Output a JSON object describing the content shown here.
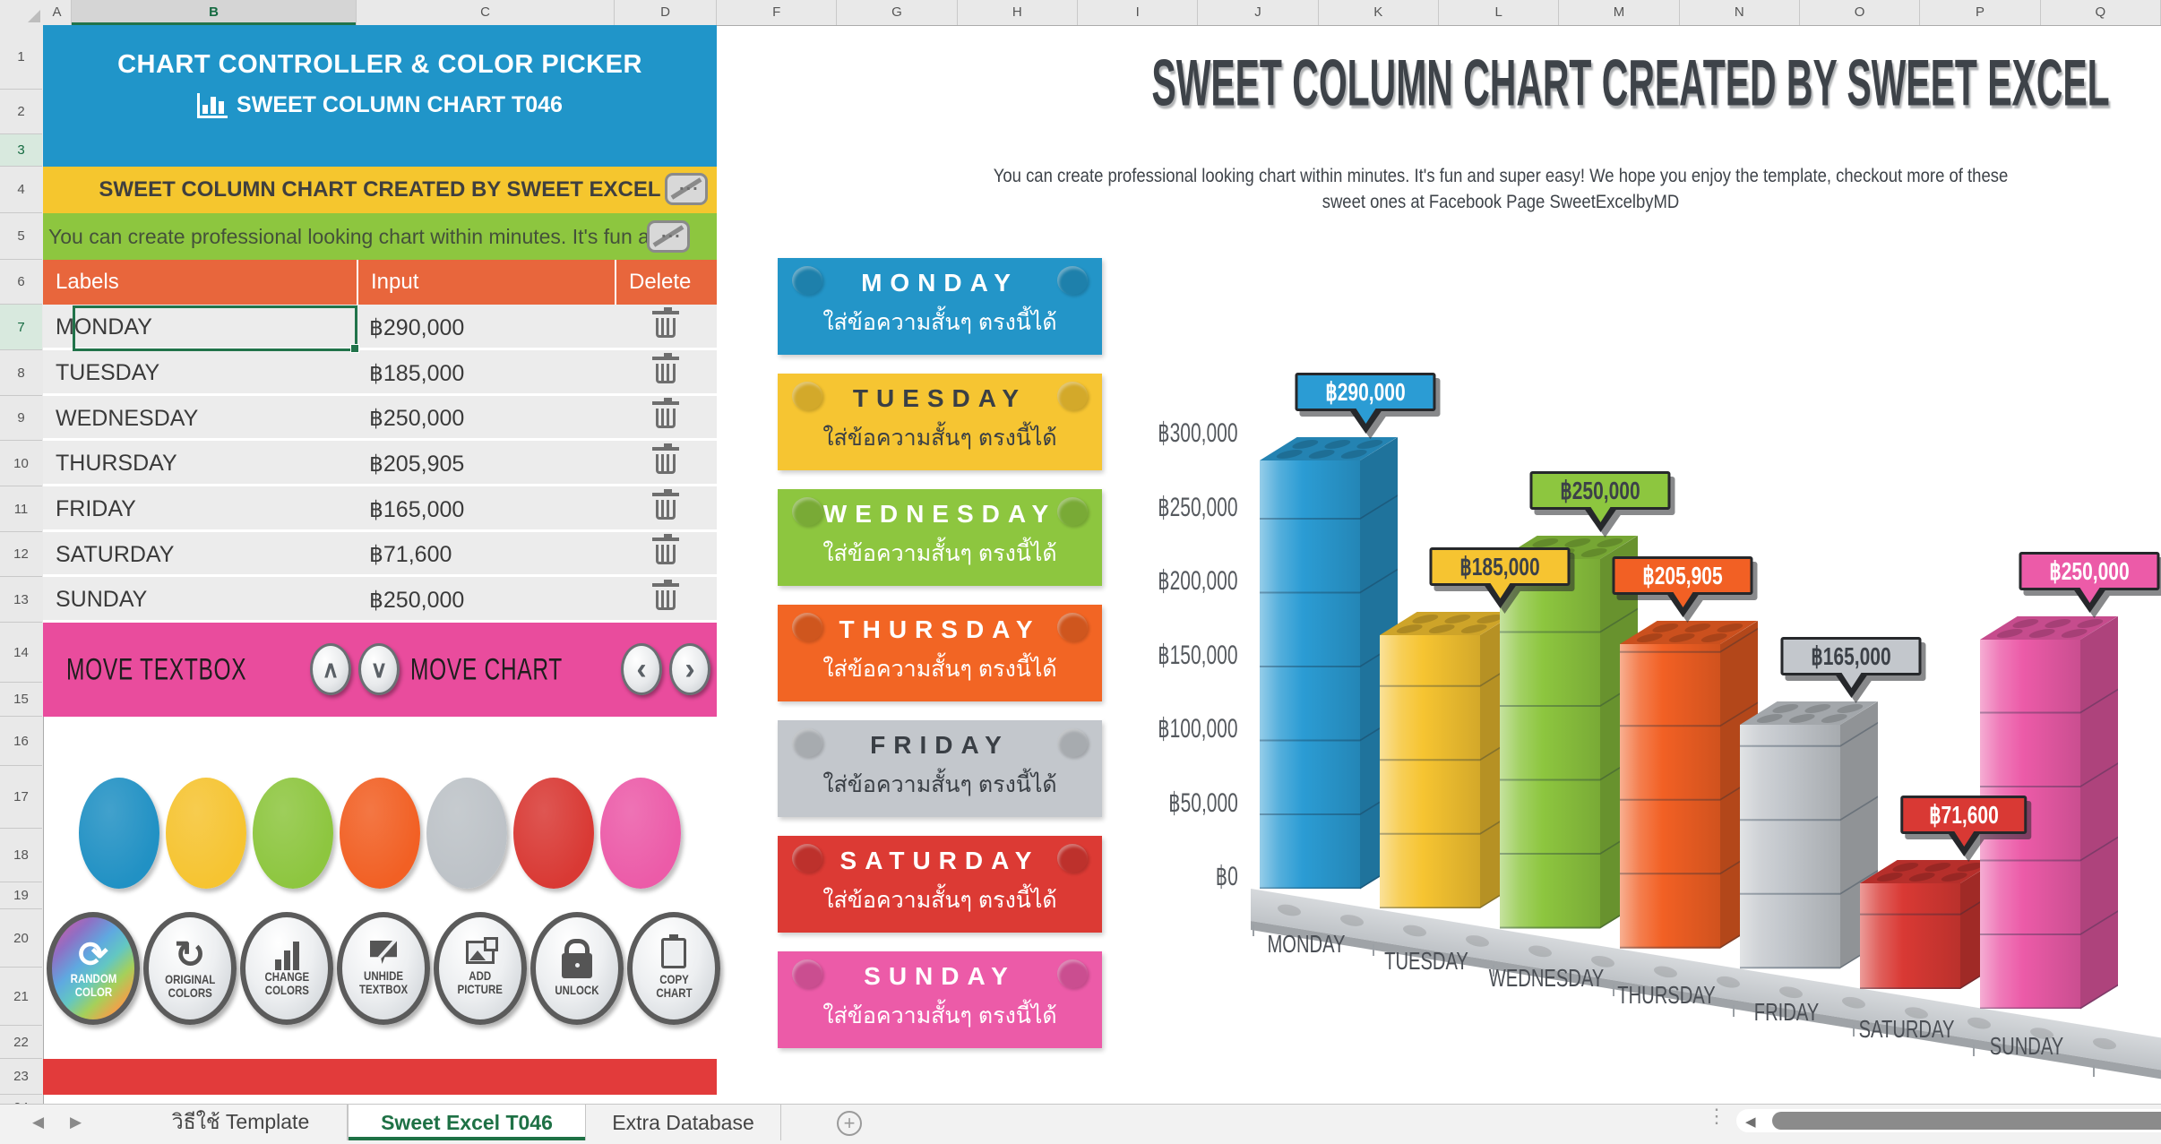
{
  "spreadsheet": {
    "column_headers": [
      "A",
      "B",
      "C",
      "D",
      "F",
      "G",
      "H",
      "I",
      "J",
      "K",
      "L",
      "M",
      "N",
      "O",
      "P",
      "Q"
    ],
    "selected_column": "B",
    "row_count": 24,
    "highlighted_rows": [
      3,
      7
    ],
    "sheet_tabs": [
      {
        "label": "วิธีใช้ Template",
        "active": false
      },
      {
        "label": "Sweet Excel T046",
        "active": true
      },
      {
        "label": "Extra Database",
        "active": false
      }
    ],
    "nav": {
      "prev_icon": "◀",
      "next_icon": "▶",
      "new_sheet_icon": "+",
      "scroll_left_icon": "◀",
      "dots_icon": "⋮"
    }
  },
  "controller": {
    "header": {
      "line1": "CHART CONTROLLER & COLOR PICKER",
      "line2": "SWEET COLUMN CHART T046"
    },
    "banner": "SWEET COLUMN CHART CREATED BY SWEET EXCEL",
    "description": "You can create professional looking chart within minutes. It's fun a",
    "table": {
      "headers": [
        "Labels",
        "Input",
        "Delete"
      ],
      "rows": [
        {
          "label": "MONDAY",
          "input": "฿290,000"
        },
        {
          "label": "TUESDAY",
          "input": "฿185,000"
        },
        {
          "label": "WEDNESDAY",
          "input": "฿250,000"
        },
        {
          "label": "THURSDAY",
          "input": "฿205,905"
        },
        {
          "label": "FRIDAY",
          "input": "฿165,000"
        },
        {
          "label": "SATURDAY",
          "input": "฿71,600"
        },
        {
          "label": "SUNDAY",
          "input": "฿250,000"
        }
      ]
    },
    "move_bar": {
      "textbox_label": "MOVE TEXTBOX",
      "chart_label": "MOVE CHART",
      "up": "∧",
      "down": "∨",
      "left": "‹",
      "right": "›"
    },
    "palette": [
      "#2191C4",
      "#F6C431",
      "#8DC63F",
      "#F26024",
      "#BDC2C7",
      "#D93934",
      "#EC5BA8"
    ],
    "buttons": [
      {
        "label": "RANDOM COLOR",
        "icon": "random-color"
      },
      {
        "label": "ORIGINAL COLORS",
        "icon": "original-colors"
      },
      {
        "label": "CHANGE COLORS",
        "icon": "change-colors"
      },
      {
        "label": "UNHIDE TEXTBOX",
        "icon": "unhide-textbox"
      },
      {
        "label": "ADD PICTURE",
        "icon": "add-picture"
      },
      {
        "label": "UNLOCK",
        "icon": "unlock"
      },
      {
        "label": "COPY CHART",
        "icon": "copy-chart"
      }
    ]
  },
  "textbox_cards": [
    {
      "title": "MONDAY",
      "subtitle": "ใส่ข้อความสั้นๆ ตรงนี้ได้",
      "color": "#2395C8",
      "text_color": "#FFFFFF"
    },
    {
      "title": "TUESDAY",
      "subtitle": "ใส่ข้อความสั้นๆ ตรงนี้ได้",
      "color": "#F6C532",
      "text_color": "#3A3F45"
    },
    {
      "title": "WEDNESDAY",
      "subtitle": "ใส่ข้อความสั้นๆ ตรงนี้ได้",
      "color": "#8DC63F",
      "text_color": "#FFFFFF"
    },
    {
      "title": "THURSDAY",
      "subtitle": "ใส่ข้อความสั้นๆ ตรงนี้ได้",
      "color": "#F26524",
      "text_color": "#FFFFFF"
    },
    {
      "title": "FRIDAY",
      "subtitle": "ใส่ข้อความสั้นๆ ตรงนี้ได้",
      "color": "#C3C7CC",
      "text_color": "#3A3F45"
    },
    {
      "title": "SATURDAY",
      "subtitle": "ใส่ข้อความสั้นๆ ตรงนี้ได้",
      "color": "#DC3A34",
      "text_color": "#FFFFFF"
    },
    {
      "title": "SUNDAY",
      "subtitle": "ใส่ข้อความสั้นๆ ตรงนี้ได้",
      "color": "#EC5BA8",
      "text_color": "#FFFFFF"
    }
  ],
  "chart_data": {
    "type": "bar",
    "title": "SWEET COLUMN CHART CREATED BY SWEET EXCEL",
    "subtitle": "You can create professional looking chart within minutes. It's fun and super easy! We hope you enjoy the template, checkout more of these sweet ones at Facebook Page SweetExcelbyMD",
    "categories": [
      "MONDAY",
      "TUESDAY",
      "WEDNESDAY",
      "THURSDAY",
      "FRIDAY",
      "SATURDAY",
      "SUNDAY"
    ],
    "values": [
      290000,
      185000,
      250000,
      205905,
      165000,
      71600,
      250000
    ],
    "data_labels": [
      "฿290,000",
      "฿185,000",
      "฿250,000",
      "฿205,905",
      "฿165,000",
      "฿71,600",
      "฿250,000"
    ],
    "colors": [
      "#2B9CD4",
      "#F6C431",
      "#8DC63F",
      "#F26024",
      "#C3C7CC",
      "#D93934",
      "#EC5BA8"
    ],
    "label_text_colors": [
      "#FFFFFF",
      "#3C4148",
      "#3C4148",
      "#FFFFFF",
      "#3C4148",
      "#FFFFFF",
      "#FFFFFF"
    ],
    "y_ticks": [
      "฿300,000",
      "฿250,000",
      "฿200,000",
      "฿150,000",
      "฿100,000",
      "฿50,000",
      "฿0"
    ],
    "ylim": [
      0,
      300000
    ],
    "currency": "฿",
    "legend": "none",
    "style": "3d-lego-columns"
  }
}
